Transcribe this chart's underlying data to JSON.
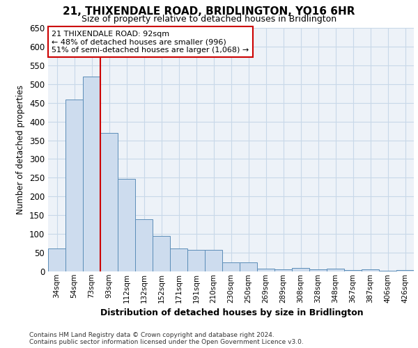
{
  "title": "21, THIXENDALE ROAD, BRIDLINGTON, YO16 6HR",
  "subtitle": "Size of property relative to detached houses in Bridlington",
  "xlabel": "Distribution of detached houses by size in Bridlington",
  "ylabel": "Number of detached properties",
  "footnote1": "Contains HM Land Registry data © Crown copyright and database right 2024.",
  "footnote2": "Contains public sector information licensed under the Open Government Licence v3.0.",
  "annotation_line1": "21 THIXENDALE ROAD: 92sqm",
  "annotation_line2": "← 48% of detached houses are smaller (996)",
  "annotation_line3": "51% of semi-detached houses are larger (1,068) →",
  "bar_color": "#cddcee",
  "bar_edge_color": "#5b8db8",
  "grid_color": "#c8d8e8",
  "annotation_line_color": "#cc0000",
  "annotation_box_edge_color": "#cc0000",
  "categories": [
    "34sqm",
    "54sqm",
    "73sqm",
    "93sqm",
    "112sqm",
    "132sqm",
    "152sqm",
    "171sqm",
    "191sqm",
    "210sqm",
    "230sqm",
    "250sqm",
    "269sqm",
    "289sqm",
    "308sqm",
    "328sqm",
    "348sqm",
    "367sqm",
    "387sqm",
    "406sqm",
    "426sqm"
  ],
  "values": [
    62,
    458,
    520,
    370,
    247,
    140,
    95,
    62,
    58,
    57,
    25,
    25,
    8,
    5,
    10,
    5,
    8,
    3,
    5,
    2,
    3
  ],
  "red_line_x": 2.5,
  "ylim": [
    0,
    650
  ],
  "yticks": [
    0,
    50,
    100,
    150,
    200,
    250,
    300,
    350,
    400,
    450,
    500,
    550,
    600,
    650
  ],
  "bg_color": "#edf2f8"
}
